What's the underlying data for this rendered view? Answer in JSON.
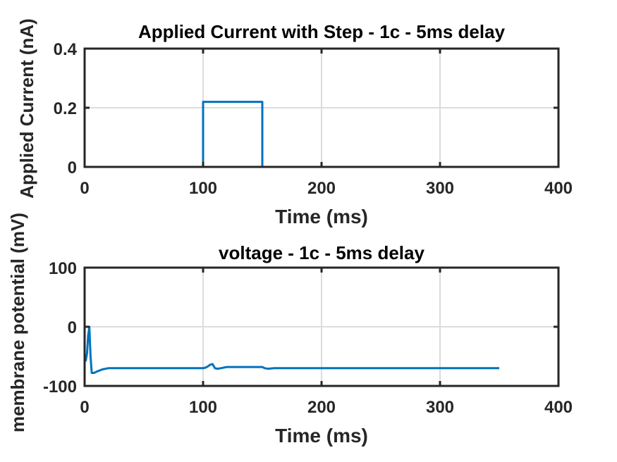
{
  "chart_data": [
    {
      "type": "line",
      "title": "Applied Current with Step - 1c - 5ms delay",
      "xlabel": "Time (ms)",
      "ylabel": "Applied Current (nA)",
      "xlim": [
        0,
        400
      ],
      "ylim": [
        0,
        0.4
      ],
      "xticks": [
        "0",
        "100",
        "200",
        "300",
        "400"
      ],
      "yticks": [
        "0",
        "0.2",
        "0.4"
      ],
      "xtick_values": [
        0,
        100,
        200,
        300,
        400
      ],
      "ytick_values": [
        0,
        0.2,
        0.4
      ],
      "grid": true,
      "line_color": "#0072bd",
      "series": [
        {
          "x": [
            0,
            100,
            100,
            150,
            150,
            350
          ],
          "y": [
            0,
            0,
            0.22,
            0.22,
            0,
            0
          ]
        }
      ]
    },
    {
      "type": "line",
      "title": "voltage - 1c - 5ms delay",
      "xlabel": "Time (ms)",
      "ylabel": "membrane potential (mV)",
      "xlim": [
        0,
        400
      ],
      "ylim": [
        -100,
        100
      ],
      "xticks": [
        "0",
        "100",
        "200",
        "300",
        "400"
      ],
      "yticks": [
        "-100",
        "0",
        "100"
      ],
      "xtick_values": [
        0,
        100,
        200,
        300,
        400
      ],
      "ytick_values": [
        -100,
        0,
        100
      ],
      "grid": true,
      "line_color": "#0072bd",
      "series": [
        {
          "x": [
            0,
            1,
            2,
            3,
            4,
            5,
            6,
            8,
            10,
            15,
            20,
            30,
            50,
            100,
            102,
            104,
            106,
            108,
            110,
            112,
            115,
            120,
            130,
            150,
            152,
            155,
            160,
            170,
            200,
            300,
            350
          ],
          "y": [
            -58,
            -57,
            -45,
            -15,
            0,
            -50,
            -78,
            -78,
            -76,
            -72,
            -70,
            -70,
            -70,
            -70,
            -69,
            -67,
            -64,
            -63,
            -70,
            -71,
            -70,
            -68,
            -68,
            -68,
            -70,
            -71,
            -70,
            -70,
            -70,
            -70,
            -70
          ]
        }
      ]
    }
  ]
}
